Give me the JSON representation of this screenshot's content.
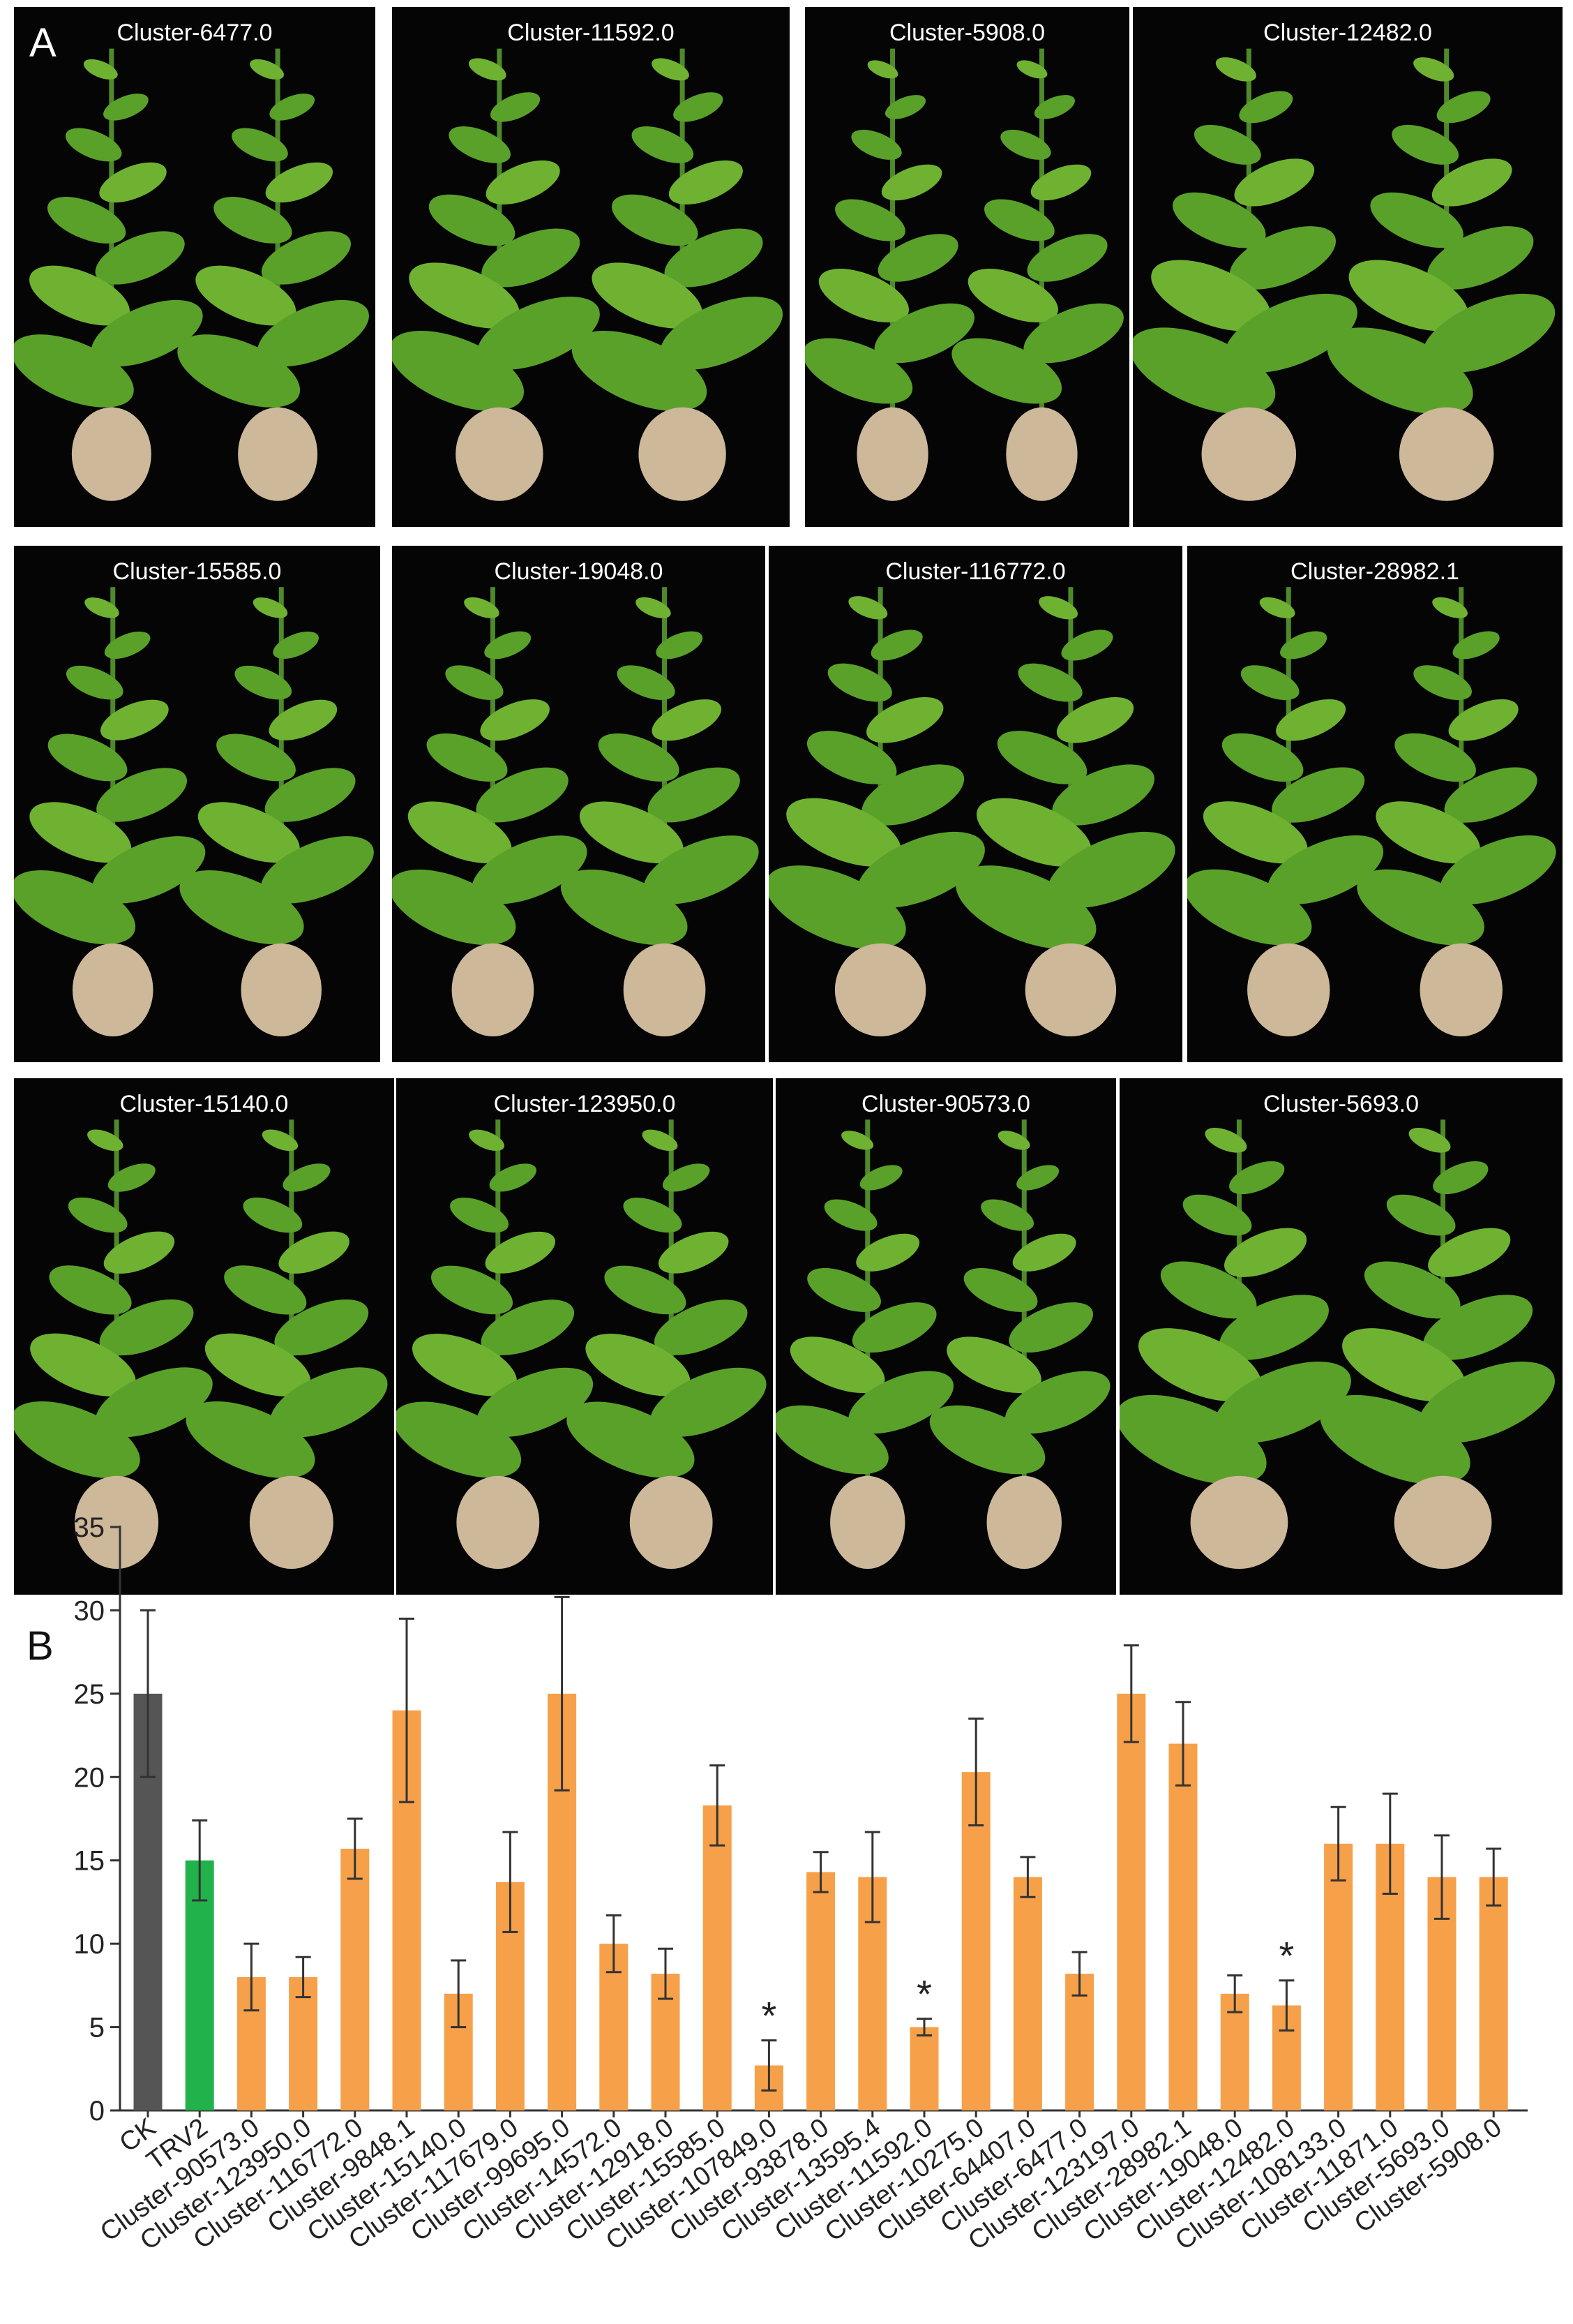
{
  "figure": {
    "panel_a_label": "A",
    "panel_b_label": "B",
    "panel_a_titles": [
      "Cluster-6477.0",
      "Cluster-11592.0",
      "Cluster-5908.0",
      "Cluster-12482.0",
      "Cluster-15585.0",
      "Cluster-19048.0",
      "Cluster-116772.0",
      "Cluster-28982.1",
      "Cluster-15140.0",
      "Cluster-123950.0",
      "Cluster-90573.0",
      "Cluster-5693.0"
    ]
  },
  "chart_data": {
    "type": "bar",
    "title": "",
    "xlabel": "",
    "ylabel": "",
    "ylim": [
      0,
      35
    ],
    "yticks": [
      0,
      5,
      10,
      15,
      20,
      25,
      30,
      35
    ],
    "grid": false,
    "categories": [
      "CK",
      "TRV2",
      "Cluster-90573.0",
      "Cluster-123950.0",
      "Cluster-116772.0",
      "Cluster-9848.1",
      "Cluster-15140.0",
      "Cluster-117679.0",
      "Cluster-99695.0",
      "Cluster-14572.0",
      "Cluster-12918.0",
      "Cluster-15585.0",
      "Cluster-107849.0",
      "Cluster-93878.0",
      "Cluster-13595.4",
      "Cluster-11592.0",
      "Cluster-10275.0",
      "Cluster-64407.0",
      "Cluster-6477.0",
      "Cluster-123197.0",
      "Cluster-28982.1",
      "Cluster-19048.0",
      "Cluster-12482.0",
      "Cluster-108133.0",
      "Cluster-11871.0",
      "Cluster-5693.0",
      "Cluster-5908.0"
    ],
    "values": [
      25,
      15,
      8,
      8,
      15.7,
      24,
      7,
      13.7,
      25,
      10,
      8.2,
      18.3,
      2.7,
      14.3,
      14,
      5,
      20.3,
      14,
      8.2,
      25,
      22,
      7,
      6.3,
      16,
      16,
      14,
      14
    ],
    "errors": [
      5,
      2.4,
      2,
      1.2,
      1.8,
      5.5,
      2,
      3,
      5.8,
      1.7,
      1.5,
      2.4,
      1.5,
      1.2,
      2.7,
      0.5,
      3.2,
      1.2,
      1.3,
      2.9,
      2.5,
      1.1,
      1.5,
      2.2,
      3,
      2.5,
      1.7
    ],
    "colors": [
      "#555555",
      "#21b24b",
      "#f7a04a",
      "#f7a04a",
      "#f7a04a",
      "#f7a04a",
      "#f7a04a",
      "#f7a04a",
      "#f7a04a",
      "#f7a04a",
      "#f7a04a",
      "#f7a04a",
      "#f7a04a",
      "#f7a04a",
      "#f7a04a",
      "#f7a04a",
      "#f7a04a",
      "#f7a04a",
      "#f7a04a",
      "#f7a04a",
      "#f7a04a",
      "#f7a04a",
      "#f7a04a",
      "#f7a04a",
      "#f7a04a",
      "#f7a04a",
      "#f7a04a"
    ],
    "annotations": [
      {
        "category": "Cluster-107849.0",
        "text": "*"
      },
      {
        "category": "Cluster-11592.0",
        "text": "*"
      },
      {
        "category": "Cluster-12482.0",
        "text": "*"
      }
    ]
  }
}
